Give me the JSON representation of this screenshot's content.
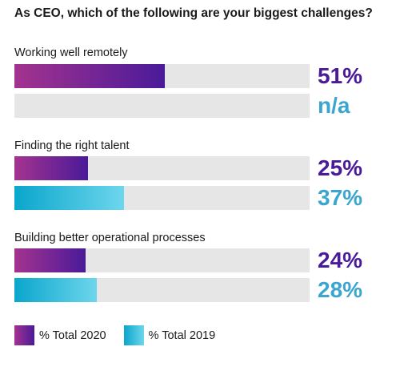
{
  "chart_data": {
    "type": "bar",
    "orientation": "horizontal",
    "title": "As CEO, which of the following are your biggest challenges?",
    "xlim": [
      0,
      100
    ],
    "categories": [
      "Working well remotely",
      "Finding the right talent",
      "Building better operational processes"
    ],
    "series": [
      {
        "name": "% Total 2020",
        "values": [
          51,
          25,
          24
        ],
        "labels": [
          "51%",
          "25%",
          "24%"
        ],
        "color": "#4a1a99"
      },
      {
        "name": "% Total 2019",
        "values": [
          null,
          37,
          28
        ],
        "labels": [
          "n/a",
          "37%",
          "28%"
        ],
        "color": "#3aa6cf"
      }
    ],
    "legend_position": "bottom-left",
    "grid": false
  }
}
